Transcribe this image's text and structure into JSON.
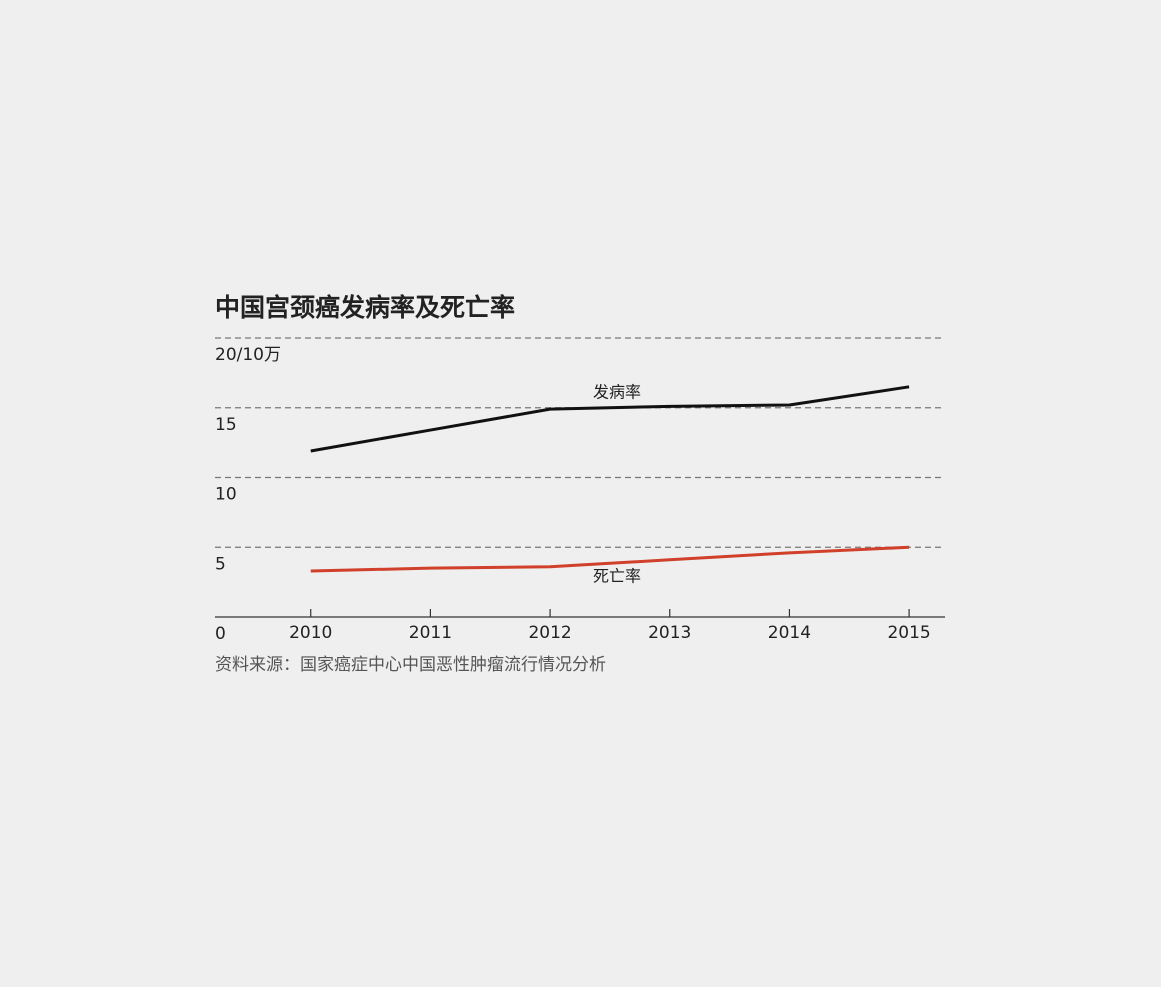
{
  "chart_data": {
    "type": "line",
    "title": "中国宫颈癌发病率及死亡率",
    "source": "资料来源：国家癌症中心中国恶性肿瘤流行情况分析",
    "x": [
      2010,
      2011,
      2012,
      2013,
      2014,
      2015
    ],
    "xlim": [
      2009.2,
      2015.3
    ],
    "xticks": [
      2010,
      2011,
      2012,
      2013,
      2014,
      2015
    ],
    "ylim": [
      0,
      20
    ],
    "yticks": [
      0,
      5,
      10,
      15,
      {
        "value": 20,
        "label": "20/10万"
      }
    ],
    "grid": true,
    "series": [
      {
        "name": "发病率",
        "color": "#111111",
        "values": [
          11.9,
          13.4,
          14.9,
          15.1,
          15.2,
          16.5
        ]
      },
      {
        "name": "死亡率",
        "color": "#d0402b",
        "values": [
          3.3,
          3.5,
          3.6,
          4.1,
          4.6,
          5.0
        ]
      }
    ]
  }
}
